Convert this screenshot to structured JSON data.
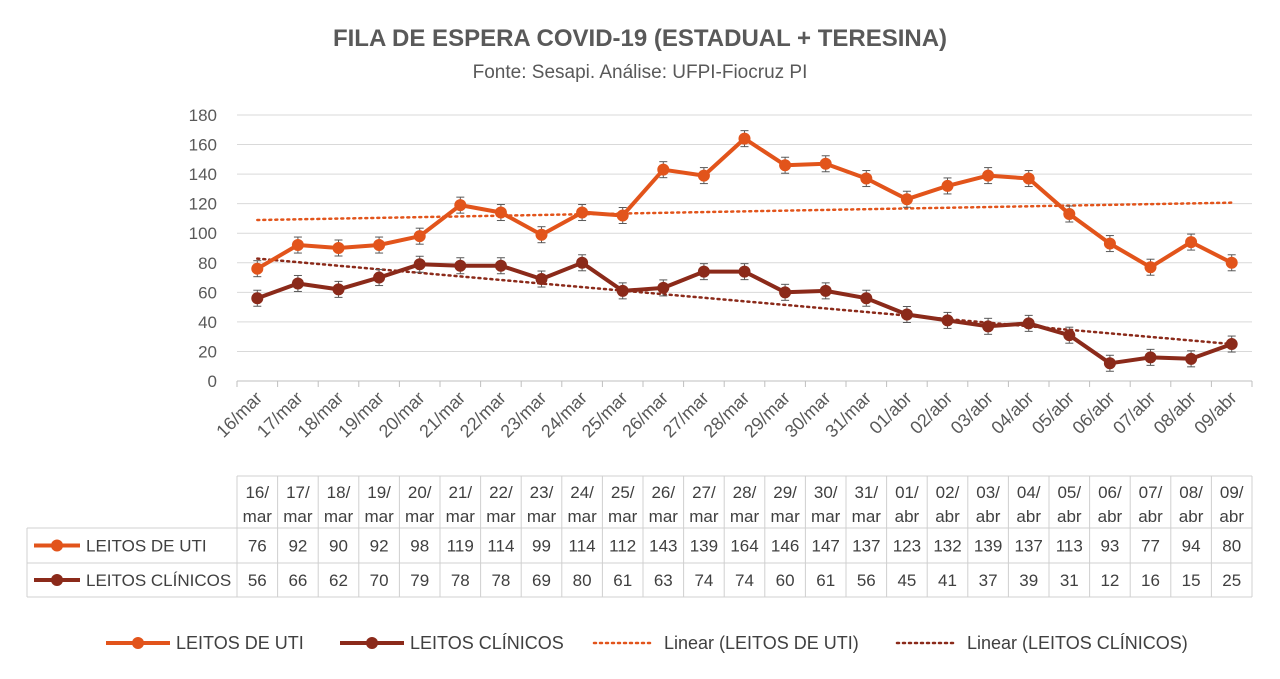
{
  "chart_data": {
    "type": "line",
    "title": "FILA DE ESPERA COVID-19 (ESTADUAL + TERESINA)",
    "subtitle": "Fonte: Sesapi. Análise: UFPI-Fiocruz PI",
    "ylim": [
      0,
      180
    ],
    "yticks": [
      0,
      20,
      40,
      60,
      80,
      100,
      120,
      140,
      160,
      180
    ],
    "grid": true,
    "legend_position": "bottom",
    "categories": [
      "16/mar",
      "17/mar",
      "18/mar",
      "19/mar",
      "20/mar",
      "21/mar",
      "22/mar",
      "23/mar",
      "24/mar",
      "25/mar",
      "26/mar",
      "27/mar",
      "28/mar",
      "29/mar",
      "30/mar",
      "31/mar",
      "01/abr",
      "02/abr",
      "03/abr",
      "04/abr",
      "05/abr",
      "06/abr",
      "07/abr",
      "08/abr",
      "09/abr"
    ],
    "table_categories": [
      [
        "16/",
        "mar"
      ],
      [
        "17/",
        "mar"
      ],
      [
        "18/",
        "mar"
      ],
      [
        "19/",
        "mar"
      ],
      [
        "20/",
        "mar"
      ],
      [
        "21/",
        "mar"
      ],
      [
        "22/",
        "mar"
      ],
      [
        "23/",
        "mar"
      ],
      [
        "24/",
        "mar"
      ],
      [
        "25/",
        "mar"
      ],
      [
        "26/",
        "mar"
      ],
      [
        "27/",
        "mar"
      ],
      [
        "28/",
        "mar"
      ],
      [
        "29/",
        "mar"
      ],
      [
        "30/",
        "mar"
      ],
      [
        "31/",
        "mar"
      ],
      [
        "01/",
        "abr"
      ],
      [
        "02/",
        "abr"
      ],
      [
        "03/",
        "abr"
      ],
      [
        "04/",
        "abr"
      ],
      [
        "05/",
        "abr"
      ],
      [
        "06/",
        "abr"
      ],
      [
        "07/",
        "abr"
      ],
      [
        "08/",
        "abr"
      ],
      [
        "09/",
        "abr"
      ]
    ],
    "series": [
      {
        "name": "LEITOS DE UTI",
        "color": "#E2541B",
        "values": [
          76,
          92,
          90,
          92,
          98,
          119,
          114,
          99,
          114,
          112,
          143,
          139,
          164,
          146,
          147,
          137,
          123,
          132,
          139,
          137,
          113,
          93,
          77,
          94,
          80
        ]
      },
      {
        "name": "LEITOS CLÍNICOS",
        "color": "#8B2A1A",
        "values": [
          56,
          66,
          62,
          70,
          79,
          78,
          78,
          69,
          80,
          61,
          63,
          74,
          74,
          60,
          61,
          56,
          45,
          41,
          37,
          39,
          31,
          12,
          16,
          15,
          25
        ]
      }
    ],
    "trendlines": [
      {
        "name": "Linear (LEITOS DE UTI)",
        "color": "#E2541B",
        "style": "dotted"
      },
      {
        "name": "Linear (LEITOS CLÍNICOS)",
        "color": "#8B2A1A",
        "style": "dotted"
      }
    ]
  }
}
